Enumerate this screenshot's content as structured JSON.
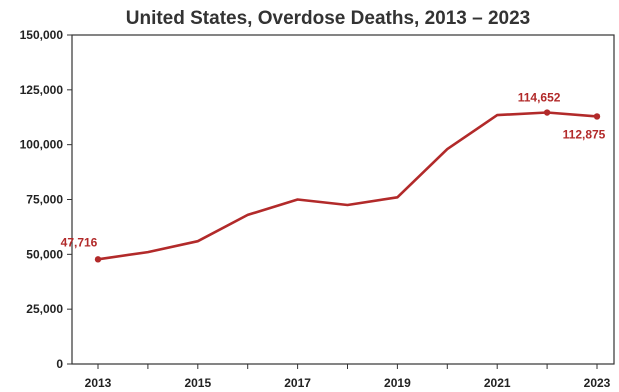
{
  "chart_data": {
    "type": "line",
    "title": "United States, Overdose Deaths, 2013 – 2023",
    "xlabel": "",
    "ylabel": "",
    "x": [
      2013,
      2014,
      2015,
      2016,
      2017,
      2018,
      2019,
      2020,
      2021,
      2022,
      2023
    ],
    "xticks": [
      "2013",
      "2015",
      "2017",
      "2019",
      "2021",
      "2023"
    ],
    "ylim": [
      0,
      150000
    ],
    "yticks": [
      "0",
      "25,000",
      "50,000",
      "75,000",
      "100,000",
      "125,000",
      "150,000"
    ],
    "grid": false,
    "legend": "none",
    "series": [
      {
        "values": [
          47716,
          51000,
          56000,
          68000,
          75000,
          72500,
          76000,
          98000,
          113500,
          114652,
          112875
        ],
        "color": "#b22a2a"
      }
    ],
    "annotations": [
      {
        "text": "47,716",
        "x": 2013,
        "y": 47716
      },
      {
        "text": "114,652",
        "x": 2022,
        "y": 114652
      },
      {
        "text": "112,875",
        "x": 2023,
        "y": 112875
      }
    ],
    "markers_at": [
      2013,
      2022,
      2023
    ]
  }
}
